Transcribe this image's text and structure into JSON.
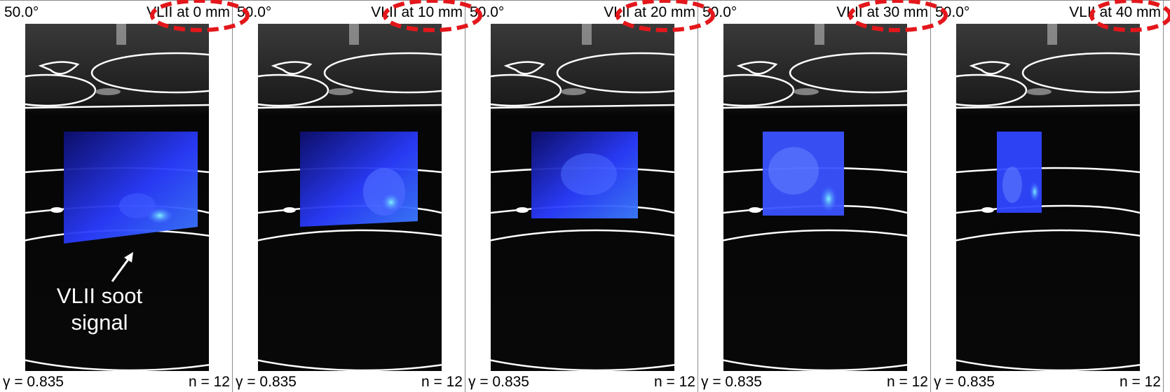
{
  "panels": [
    {
      "angle": "50.0°",
      "label": "VLII at 0 mm",
      "gamma": "γ = 0.835",
      "n": "n = 12",
      "soot_width_fraction": 1.0
    },
    {
      "angle": "50.0°",
      "label": "VLII at 10 mm",
      "gamma": "γ = 0.835",
      "n": "n = 12",
      "soot_width_fraction": 0.84
    },
    {
      "angle": "50.0°",
      "label": "VLII at 20 mm",
      "gamma": "γ = 0.835",
      "n": "n = 12",
      "soot_width_fraction": 0.72
    },
    {
      "angle": "50.0°",
      "label": "VLII at 30 mm",
      "gamma": "γ = 0.835",
      "n": "n = 12",
      "soot_width_fraction": 0.58
    },
    {
      "angle": "50.0°",
      "label": "VLII at 40 mm",
      "gamma": "γ = 0.835",
      "n": "n = 12",
      "soot_width_fraction": 0.33
    }
  ],
  "annotation": {
    "line1": "VLII soot",
    "line2": "signal"
  },
  "colors": {
    "highlight_ring": "#e3171b",
    "soot_blue": "#2a3cff",
    "soot_cyan": "#5fd6ff",
    "outline": "#ffffff"
  }
}
